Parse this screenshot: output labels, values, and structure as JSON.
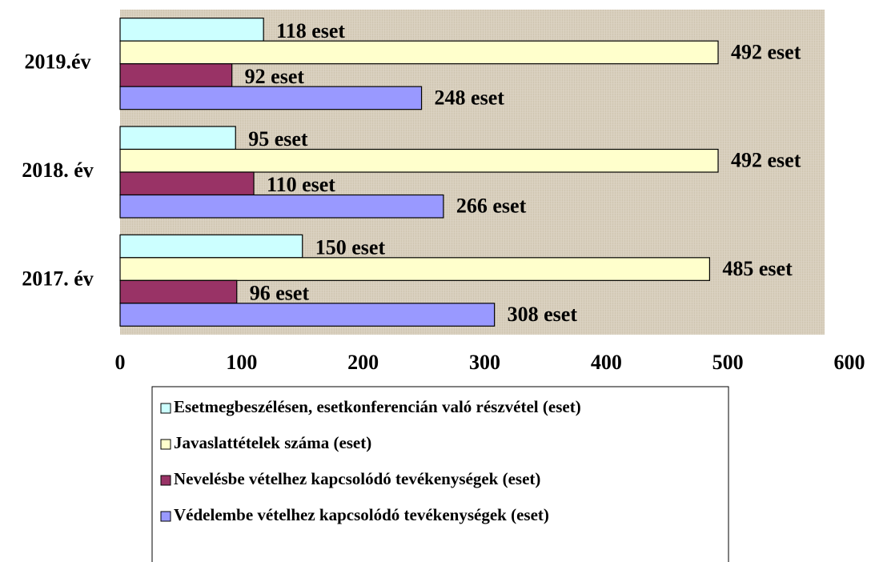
{
  "chart_data": {
    "type": "bar",
    "orientation": "horizontal",
    "categories": [
      "2019.év",
      "2018. év",
      "2017. év"
    ],
    "series": [
      {
        "name": "Esetmegbeszélésen, esetkonferencián való részvétel (eset)",
        "color": "#ccffff",
        "values": [
          118,
          95,
          150
        ],
        "value_labels": [
          "118 eset",
          "95 eset",
          "150 eset"
        ]
      },
      {
        "name": "Javaslattételek száma (eset)",
        "color": "#ffffcc",
        "values": [
          492,
          492,
          485
        ],
        "value_labels": [
          "492 eset",
          "492 eset",
          "485 eset"
        ]
      },
      {
        "name": "Nevelésbe vételhez kapcsolódó tevékenységek (eset)",
        "color": "#993366",
        "values": [
          92,
          110,
          96
        ],
        "value_labels": [
          "92 eset",
          "110 eset",
          "96 eset"
        ]
      },
      {
        "name": "Védelembe vételhez kapcsolódó tevékenységek (eset)",
        "color": "#9999ff",
        "values": [
          248,
          266,
          308
        ],
        "value_labels": [
          "248 eset",
          "266 eset",
          "308 eset"
        ]
      }
    ],
    "xlim": [
      0,
      600
    ],
    "xticks": [
      0,
      100,
      200,
      300,
      400,
      500,
      600
    ],
    "grid": false,
    "legend": "bottom"
  }
}
